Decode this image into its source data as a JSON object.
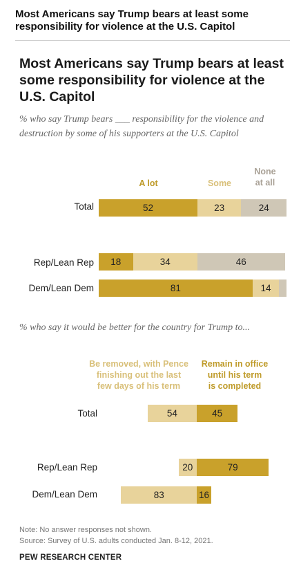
{
  "header": {
    "page_title": "Most Americans say Trump bears at least some responsibility for violence at the U.S. Capitol"
  },
  "colors": {
    "a_lot": "#C9A12B",
    "some": "#E8D39B",
    "none_at_all": "#CFC7B6",
    "removed": "#E8D39B",
    "remain": "#C9A12B",
    "legend_a_lot": "#BF9B2A",
    "legend_some": "#D9C07A",
    "legend_none": "#A9A196"
  },
  "chart_data": [
    {
      "type": "bar",
      "orientation": "horizontal",
      "stacked": true,
      "title": "Most Americans say Trump bears at least some responsibility for violence at the U.S. Capitol",
      "subtitle": "% who say Trump bears ___ responsibility for the violence and destruction by some of his supporters at the U.S. Capitol",
      "categories": [
        "Total",
        "Rep/Lean Rep",
        "Dem/Lean Dem"
      ],
      "series": [
        {
          "name": "A lot",
          "values": [
            52,
            18,
            81
          ]
        },
        {
          "name": "Some",
          "values": [
            23,
            34,
            14
          ]
        },
        {
          "name": "None at all",
          "values": [
            24,
            46,
            4
          ]
        }
      ],
      "value_labels": [
        [
          "52",
          "23",
          "24"
        ],
        [
          "18",
          "34",
          "46"
        ],
        [
          "81",
          "14",
          ""
        ]
      ],
      "xlim": [
        0,
        100
      ],
      "legend": "top"
    },
    {
      "type": "bar",
      "orientation": "horizontal",
      "diverging": true,
      "subtitle": "% who say it would be better for the country for Trump to...",
      "categories": [
        "Total",
        "Rep/Lean Rep",
        "Dem/Lean Dem"
      ],
      "series": [
        {
          "name": "Be removed, with Pence finishing out the last few days of his term",
          "values": [
            54,
            20,
            83
          ]
        },
        {
          "name": "Remain in office until his term is completed",
          "values": [
            45,
            79,
            16
          ]
        }
      ],
      "legend": "top"
    }
  ],
  "legend1": {
    "a_lot": "A lot",
    "some": "Some",
    "none_line1": "None",
    "none_line2": "at all"
  },
  "legend2": {
    "removed_line1": "Be removed, with Pence",
    "removed_line2": "finishing out the last",
    "removed_line3": "few days of his term",
    "remain_line1": "Remain in office",
    "remain_line2": "until his term",
    "remain_line3": "is completed"
  },
  "footer": {
    "note": "Note: No answer responses not shown.",
    "source": "Source: Survey of U.S. adults conducted Jan. 8-12, 2021.",
    "org": "PEW RESEARCH CENTER"
  }
}
